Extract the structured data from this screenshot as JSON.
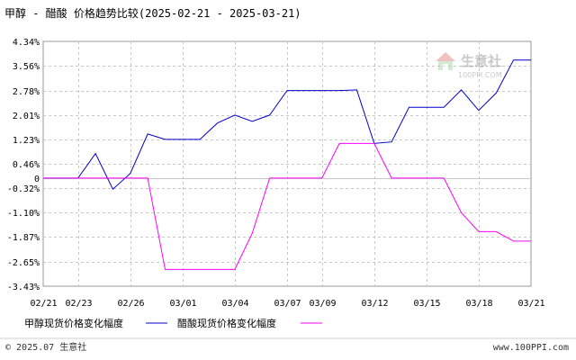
{
  "chart_data": {
    "type": "line",
    "title": "甲醇 - 醋酸 价格趋势比较(2025-02-21 - 2025-03-21)",
    "x_tick_labels": [
      "02/21",
      "02/23",
      "02/26",
      "03/01",
      "03/04",
      "03/07",
      "03/09",
      "03/12",
      "03/15",
      "03/18",
      "03/21"
    ],
    "y_tick_labels": [
      "4.34%",
      "3.56%",
      "2.78%",
      "2.01%",
      "1.23%",
      "0.46%",
      "0",
      "-0.32%",
      "-1.10%",
      "-1.87%",
      "-2.65%",
      "-3.43%"
    ],
    "ylim": [
      -3.43,
      4.34
    ],
    "grid": true,
    "legend_position": "bottom-left",
    "x": [
      "02/21",
      "02/22",
      "02/23",
      "02/24",
      "02/25",
      "02/26",
      "02/27",
      "02/28",
      "03/01",
      "03/02",
      "03/03",
      "03/04",
      "03/05",
      "03/06",
      "03/07",
      "03/08",
      "03/09",
      "03/10",
      "03/11",
      "03/12",
      "03/13",
      "03/14",
      "03/15",
      "03/16",
      "03/17",
      "03/18",
      "03/19",
      "03/20",
      "03/21"
    ],
    "series": [
      {
        "name": "甲醇现货价格变化幅度",
        "color": "#0000cc",
        "values": [
          0,
          0,
          0,
          0.78,
          -0.35,
          0.15,
          1.4,
          1.23,
          1.23,
          1.23,
          1.75,
          2.0,
          1.8,
          2.0,
          2.78,
          2.78,
          2.78,
          2.78,
          2.8,
          1.1,
          1.15,
          2.25,
          2.25,
          2.25,
          2.8,
          2.15,
          2.7,
          3.75,
          3.75
        ]
      },
      {
        "name": "醋酸现货价格变化幅度",
        "color": "#ff00ff",
        "values": [
          0,
          0,
          0,
          0,
          0,
          0,
          0,
          -2.9,
          -2.9,
          -2.9,
          -2.9,
          -2.9,
          -1.75,
          0,
          0,
          0,
          0,
          1.1,
          1.1,
          1.1,
          0,
          0,
          0,
          0,
          -1.1,
          -1.7,
          -1.7,
          -2.0,
          -2.0
        ]
      }
    ]
  },
  "watermark": {
    "name": "生意社",
    "url": "100PPI.COM"
  },
  "footer": {
    "left": "© 2025.07 生意社",
    "right": "www.100PPI.com"
  }
}
